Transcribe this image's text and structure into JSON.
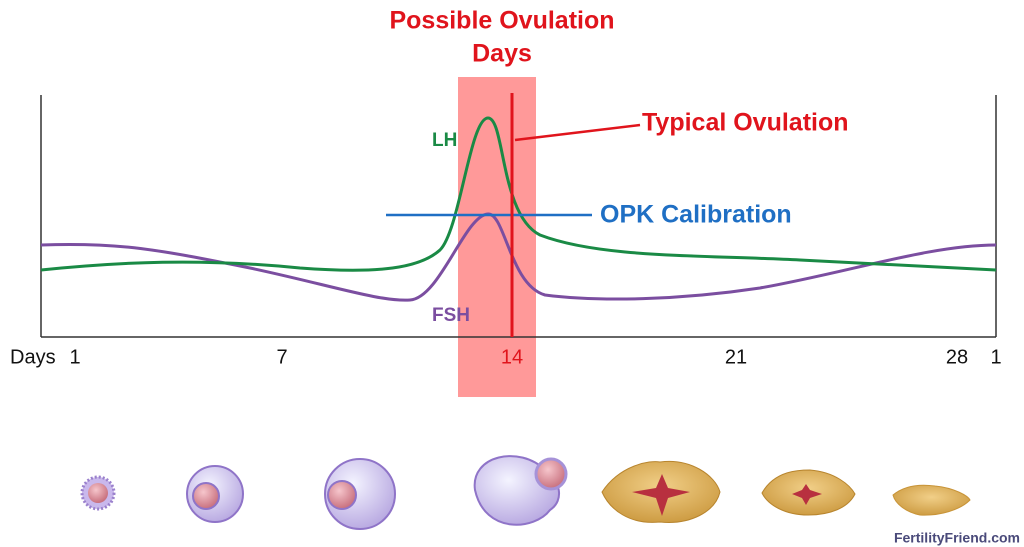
{
  "title": {
    "line1": "Possible Ovulation",
    "line2": "Days"
  },
  "labels": {
    "typical": "Typical Ovulation",
    "lh": "LH",
    "opk": "OPK Calibration",
    "fsh": "FSH"
  },
  "axis": {
    "label": "Days",
    "ticks": [
      "1",
      "7",
      "14",
      "21",
      "28",
      "1"
    ]
  },
  "footer": "FertilityFriend.com"
}
